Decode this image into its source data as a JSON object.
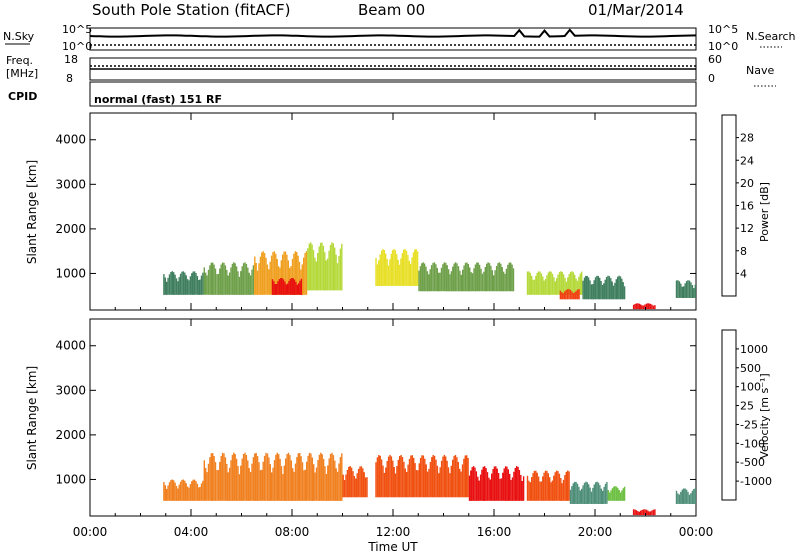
{
  "header": {
    "station": "South Pole Station (fitACF)",
    "beam": "Beam 00",
    "date": "01/Mar/2014"
  },
  "noise_panel": {
    "left_label": "N.Sky",
    "right_label": "N.Search",
    "left_ticks": [
      "10^5",
      "10^0"
    ],
    "right_ticks": [
      "10^5",
      "10^0"
    ]
  },
  "freq_panel": {
    "left_label_1": "Freq.",
    "left_label_2": "[MHz]",
    "right_label": "Nave",
    "left_ticks": [
      "18",
      "8"
    ],
    "right_ticks": [
      "60",
      "0"
    ]
  },
  "cpid": {
    "label": "CPID",
    "value": "normal (fast) 151 RF"
  },
  "colors": {
    "power_scale": [
      "#0a1ad6",
      "#1e4fc0",
      "#3f7f5f",
      "#6ea04a",
      "#b5d93a",
      "#e8e028",
      "#f0a020",
      "#f07020",
      "#f04010",
      "#e81010"
    ],
    "velocity_scale": [
      "#1030c8",
      "#3060b0",
      "#4f8f7a",
      "#6ec044",
      "#a8a8a8",
      "#f0b020",
      "#f08020",
      "#f05010",
      "#e81010"
    ]
  },
  "chart_data": [
    {
      "type": "heatmap",
      "name": "power",
      "ylabel": "Slant Range [km]",
      "xlabel": "",
      "ylim": [
        180,
        4600
      ],
      "y_ticks": [
        "4000",
        "3000",
        "2000",
        "1000"
      ],
      "colorbar_label": "Power [dB]",
      "colorbar_ticks": [
        "28",
        "24",
        "20",
        "16",
        "12",
        "8",
        "4"
      ],
      "segments": [
        {
          "t0": 2.9,
          "t1": 4.5,
          "r0": 520,
          "r1": 1050,
          "level": 2
        },
        {
          "t0": 4.5,
          "t1": 6.5,
          "r0": 520,
          "r1": 1250,
          "level": 3
        },
        {
          "t0": 6.5,
          "t1": 8.6,
          "r0": 520,
          "r1": 1500,
          "level": 6
        },
        {
          "t0": 7.2,
          "t1": 8.4,
          "r0": 520,
          "r1": 900,
          "level": 9
        },
        {
          "t0": 8.6,
          "t1": 10.0,
          "r0": 620,
          "r1": 1700,
          "level": 4
        },
        {
          "t0": 11.3,
          "t1": 13.0,
          "r0": 720,
          "r1": 1550,
          "level": 5
        },
        {
          "t0": 13.0,
          "t1": 16.8,
          "r0": 600,
          "r1": 1250,
          "level": 3
        },
        {
          "t0": 17.3,
          "t1": 19.5,
          "r0": 520,
          "r1": 1050,
          "level": 4
        },
        {
          "t0": 18.6,
          "t1": 19.4,
          "r0": 420,
          "r1": 650,
          "level": 8
        },
        {
          "t0": 19.5,
          "t1": 21.2,
          "r0": 420,
          "r1": 950,
          "level": 2
        },
        {
          "t0": 21.5,
          "t1": 22.4,
          "r0": 200,
          "r1": 330,
          "level": 9
        },
        {
          "t0": 23.2,
          "t1": 24.0,
          "r0": 450,
          "r1": 850,
          "level": 2
        }
      ]
    },
    {
      "type": "heatmap",
      "name": "velocity",
      "ylabel": "Slant Range [km]",
      "xlabel": "Time UT",
      "ylim": [
        180,
        4600
      ],
      "y_ticks": [
        "4000",
        "3000",
        "2000",
        "1000"
      ],
      "x_ticks": [
        "00:00",
        "04:00",
        "08:00",
        "12:00",
        "16:00",
        "20:00",
        "00:00"
      ],
      "colorbar_label": "Velocity [m s⁻¹]",
      "colorbar_ticks": [
        "1000",
        "500",
        "100",
        "25",
        "-25",
        "-100",
        "-500",
        "-1000"
      ],
      "segments": [
        {
          "t0": 2.9,
          "t1": 4.5,
          "r0": 520,
          "r1": 1000,
          "level": 6
        },
        {
          "t0": 4.5,
          "t1": 10.0,
          "r0": 520,
          "r1": 1600,
          "level": 6
        },
        {
          "t0": 10.0,
          "t1": 11.0,
          "r0": 600,
          "r1": 1300,
          "level": 7
        },
        {
          "t0": 11.3,
          "t1": 15.0,
          "r0": 600,
          "r1": 1550,
          "level": 7
        },
        {
          "t0": 15.0,
          "t1": 17.2,
          "r0": 520,
          "r1": 1300,
          "level": 8
        },
        {
          "t0": 17.3,
          "t1": 19.0,
          "r0": 520,
          "r1": 1200,
          "level": 7
        },
        {
          "t0": 19.0,
          "t1": 20.5,
          "r0": 450,
          "r1": 950,
          "level": 2
        },
        {
          "t0": 20.5,
          "t1": 21.2,
          "r0": 520,
          "r1": 850,
          "level": 3
        },
        {
          "t0": 21.5,
          "t1": 22.4,
          "r0": 200,
          "r1": 330,
          "level": 8
        },
        {
          "t0": 23.2,
          "t1": 24.0,
          "r0": 450,
          "r1": 800,
          "level": 2
        }
      ]
    }
  ]
}
